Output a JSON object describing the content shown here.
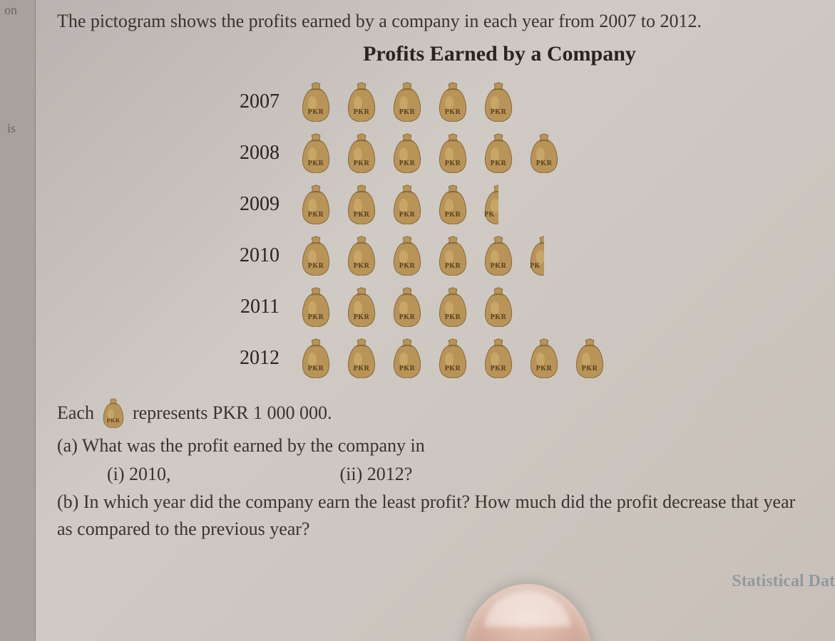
{
  "margin": {
    "top": "on",
    "mid": "is"
  },
  "intro": "The pictogram shows the profits earned by a company in each year from 2007 to 2012.",
  "chart": {
    "title": "Profits Earned by a Company",
    "icon_label": "PKR",
    "bag_fill": "#b89458",
    "bag_shadow": "#8a6a38",
    "bag_highlight": "#d8b878",
    "rows": [
      {
        "year": "2007",
        "count": 5.0
      },
      {
        "year": "2008",
        "count": 6.0
      },
      {
        "year": "2009",
        "count": 4.5
      },
      {
        "year": "2010",
        "count": 5.5
      },
      {
        "year": "2011",
        "count": 5.0
      },
      {
        "year": "2012",
        "count": 7.0
      }
    ]
  },
  "key": {
    "prefix": "Each",
    "suffix": "represents PKR 1 000 000."
  },
  "questions": {
    "a_text": "(a)  What was the profit earned by the company in",
    "a_i": "(i)  2010,",
    "a_ii": "(ii)  2012?",
    "b_text": "(b)  In which year did the company earn the least profit? How much did the profit decrease that year as compared to the previous year?"
  },
  "stamp": "Statistical Dat"
}
